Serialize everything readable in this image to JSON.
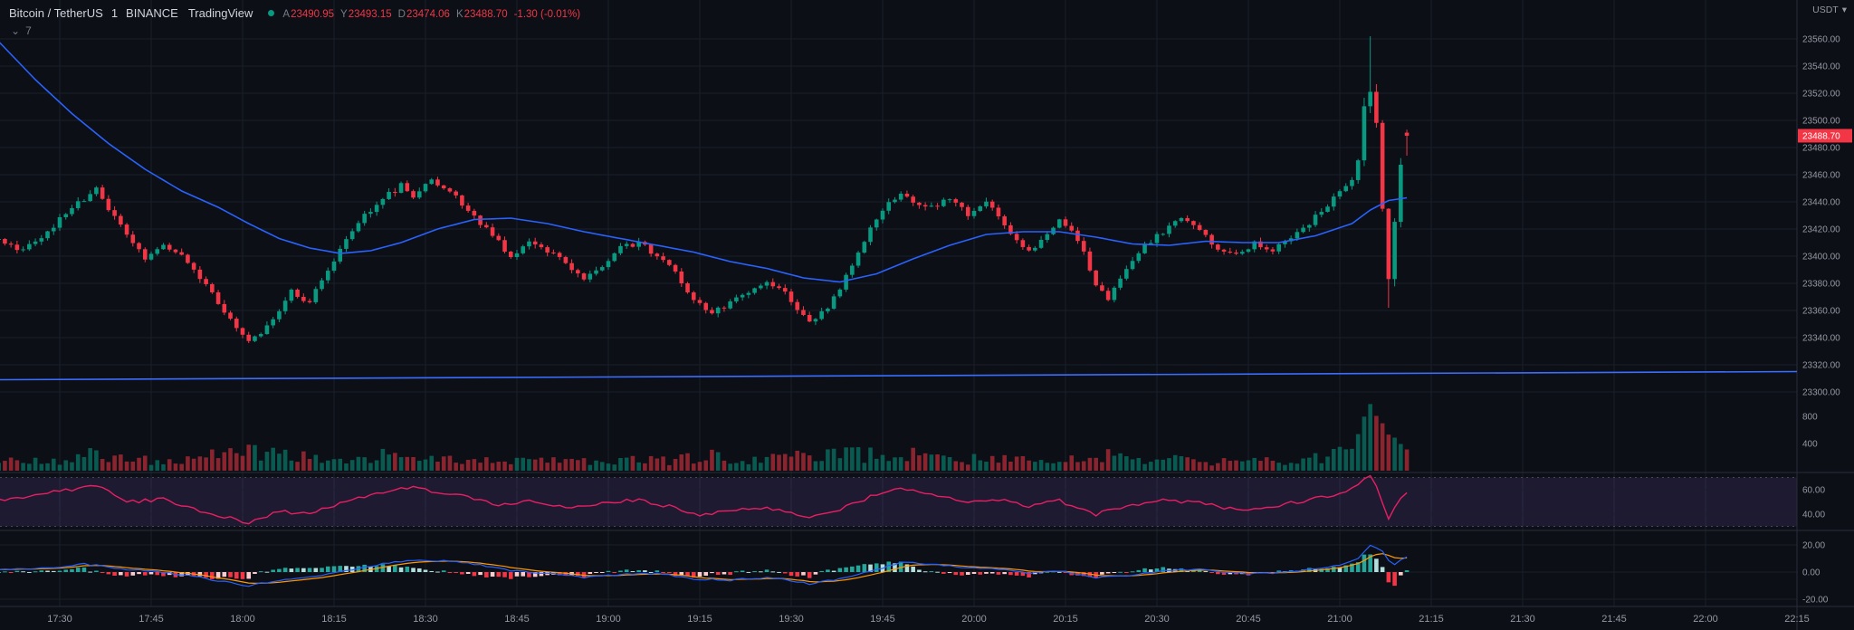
{
  "header": {
    "symbol": "Bitcoin / TetherUS",
    "interval": "1",
    "exchange": "BINANCE",
    "attribution": "TradingView",
    "ohlc": {
      "open_label": "A",
      "open_value": "23490.95",
      "high_label": "Y",
      "high_value": "23493.15",
      "low_label": "D",
      "low_value": "23474.06",
      "close_label": "K",
      "close_value": "23488.70",
      "change": "-1.30 (-0.01%)"
    },
    "indicators_toggle": {
      "count": "7"
    }
  },
  "icons": {
    "chevron_down": "⌄",
    "caret_down": "▾"
  },
  "price_axis": {
    "currency": "USDT",
    "last_price_tag": {
      "label": "23488.70",
      "price": 23488.7
    },
    "ticks": [
      {
        "label": "23560.00",
        "value": 23560
      },
      {
        "label": "23540.00",
        "value": 23540
      },
      {
        "label": "23520.00",
        "value": 23520
      },
      {
        "label": "23500.00",
        "value": 23500
      },
      {
        "label": "23480.00",
        "value": 23480
      },
      {
        "label": "23460.00",
        "value": 23460
      },
      {
        "label": "23440.00",
        "value": 23440
      },
      {
        "label": "23420.00",
        "value": 23420
      },
      {
        "label": "23400.00",
        "value": 23400
      },
      {
        "label": "23380.00",
        "value": 23380
      },
      {
        "label": "23360.00",
        "value": 23360
      },
      {
        "label": "23340.00",
        "value": 23340
      },
      {
        "label": "23320.00",
        "value": 23320
      },
      {
        "label": "23300.00",
        "value": 23300
      }
    ]
  },
  "volume_axis": {
    "ticks": [
      {
        "label": "800",
        "value": 800
      },
      {
        "label": "400",
        "value": 400
      }
    ]
  },
  "rsi_axis": {
    "ticks": [
      {
        "label": "60.00",
        "value": 60
      },
      {
        "label": "40.00",
        "value": 40
      }
    ]
  },
  "macd_axis": {
    "ticks": [
      {
        "label": "20.00",
        "value": 20
      },
      {
        "label": "0.00",
        "value": 0
      },
      {
        "label": "-20.00",
        "value": -20
      }
    ]
  },
  "time_axis": {
    "ticks": [
      "17:30",
      "17:45",
      "18:00",
      "18:15",
      "18:30",
      "18:45",
      "19:00",
      "19:15",
      "19:30",
      "19:45",
      "20:00",
      "20:15",
      "20:30",
      "20:45",
      "21:00",
      "21:15",
      "21:30",
      "21:45",
      "22:00",
      "22:15"
    ]
  },
  "colors": {
    "background": "#0c0f16",
    "grid": "#1a1f2b",
    "pane_separator": "#2a2e39",
    "axis_text": "#9598a1",
    "text_primary": "#d1d4dc",
    "text_muted": "#787b86",
    "up": "#089981",
    "down": "#f23645",
    "volume_up": "rgba(8,153,129,0.55)",
    "volume_down": "rgba(242,54,69,0.55)",
    "ma_line": "#2962ff",
    "trend_line": "#3b6dff",
    "rsi_line": "#e91e63",
    "rsi_band": "rgba(126,87,194,0.16)",
    "rsi_level": "#787b86",
    "macd_line": "#2962ff",
    "signal_line": "#ff9800",
    "hist_up": "#26a69a",
    "hist_up_weak": "#b2dfdb",
    "hist_down": "#f23645",
    "hist_down_weak": "#fccbcd",
    "price_tag_bg": "#f23645",
    "price_tag_text": "#ffffff"
  },
  "chart_data": {
    "type": "candlestick",
    "title": "Bitcoin / TetherUS, 1 minute, BINANCE",
    "interval_minutes": 1,
    "candle_count": 232,
    "first_candle_time": "17:20",
    "last_candle_time": "21:11",
    "price_range": [
      23300,
      23560
    ],
    "panes": [
      "price+volume",
      "rsi",
      "macd"
    ],
    "grid": true,
    "last_candle": {
      "open": 23490.95,
      "high": 23493.15,
      "low": 23474.06,
      "close": 23488.7
    },
    "spike_candle": {
      "index": 225,
      "high": 23562
    },
    "deep_wick_candle": {
      "index": 228,
      "low": 23362
    },
    "trendline": {
      "start_price": 23309,
      "end_price": 23315
    },
    "rsi_band": [
      30,
      70
    ],
    "series": {
      "close_anchors": [
        [
          0,
          23412
        ],
        [
          4,
          23404
        ],
        [
          8,
          23418
        ],
        [
          11,
          23432
        ],
        [
          14,
          23442
        ],
        [
          16,
          23450
        ],
        [
          18,
          23436
        ],
        [
          21,
          23415
        ],
        [
          24,
          23398
        ],
        [
          27,
          23408
        ],
        [
          30,
          23400
        ],
        [
          33,
          23385
        ],
        [
          36,
          23365
        ],
        [
          39,
          23348
        ],
        [
          41,
          23336
        ],
        [
          43,
          23344
        ],
        [
          46,
          23360
        ],
        [
          48,
          23374
        ],
        [
          51,
          23366
        ],
        [
          54,
          23390
        ],
        [
          57,
          23412
        ],
        [
          60,
          23430
        ],
        [
          63,
          23442
        ],
        [
          66,
          23452
        ],
        [
          68,
          23444
        ],
        [
          71,
          23455
        ],
        [
          74,
          23448
        ],
        [
          76,
          23438
        ],
        [
          79,
          23424
        ],
        [
          82,
          23410
        ],
        [
          84,
          23400
        ],
        [
          87,
          23412
        ],
        [
          90,
          23404
        ],
        [
          93,
          23394
        ],
        [
          96,
          23384
        ],
        [
          99,
          23394
        ],
        [
          102,
          23406
        ],
        [
          105,
          23410
        ],
        [
          108,
          23400
        ],
        [
          111,
          23388
        ],
        [
          114,
          23368
        ],
        [
          117,
          23358
        ],
        [
          120,
          23366
        ],
        [
          123,
          23375
        ],
        [
          126,
          23382
        ],
        [
          129,
          23372
        ],
        [
          131,
          23360
        ],
        [
          133,
          23350
        ],
        [
          136,
          23362
        ],
        [
          139,
          23385
        ],
        [
          142,
          23412
        ],
        [
          145,
          23435
        ],
        [
          148,
          23446
        ],
        [
          150,
          23440
        ],
        [
          153,
          23436
        ],
        [
          156,
          23443
        ],
        [
          159,
          23430
        ],
        [
          162,
          23440
        ],
        [
          164,
          23428
        ],
        [
          167,
          23412
        ],
        [
          169,
          23404
        ],
        [
          172,
          23416
        ],
        [
          174,
          23428
        ],
        [
          177,
          23412
        ],
        [
          180,
          23380
        ],
        [
          182,
          23368
        ],
        [
          185,
          23390
        ],
        [
          188,
          23408
        ],
        [
          191,
          23418
        ],
        [
          194,
          23428
        ],
        [
          197,
          23420
        ],
        [
          200,
          23405
        ],
        [
          203,
          23400
        ],
        [
          206,
          23410
        ],
        [
          209,
          23404
        ],
        [
          212,
          23415
        ],
        [
          215,
          23425
        ],
        [
          218,
          23438
        ],
        [
          220,
          23446
        ],
        [
          222,
          23455
        ],
        [
          223,
          23470
        ],
        [
          224,
          23510
        ],
        [
          225,
          23522
        ],
        [
          226,
          23498
        ],
        [
          227,
          23435
        ],
        [
          228,
          23382
        ],
        [
          229,
          23425
        ],
        [
          230,
          23468
        ],
        [
          231,
          23488.7
        ]
      ],
      "volume_anchors": [
        [
          0,
          140
        ],
        [
          10,
          120
        ],
        [
          16,
          260
        ],
        [
          24,
          150
        ],
        [
          33,
          180
        ],
        [
          41,
          300
        ],
        [
          48,
          200
        ],
        [
          57,
          170
        ],
        [
          63,
          240
        ],
        [
          70,
          190
        ],
        [
          80,
          150
        ],
        [
          90,
          130
        ],
        [
          100,
          150
        ],
        [
          110,
          160
        ],
        [
          117,
          220
        ],
        [
          126,
          150
        ],
        [
          133,
          260
        ],
        [
          142,
          230
        ],
        [
          148,
          260
        ],
        [
          156,
          170
        ],
        [
          164,
          160
        ],
        [
          172,
          140
        ],
        [
          180,
          230
        ],
        [
          188,
          170
        ],
        [
          196,
          150
        ],
        [
          204,
          140
        ],
        [
          212,
          150
        ],
        [
          218,
          190
        ],
        [
          222,
          320
        ],
        [
          224,
          780
        ],
        [
          225,
          1050
        ],
        [
          226,
          820
        ],
        [
          227,
          680
        ],
        [
          228,
          560
        ],
        [
          229,
          460
        ],
        [
          230,
          380
        ],
        [
          231,
          310
        ]
      ],
      "ma_anchors": [
        [
          0,
          23558
        ],
        [
          6,
          23530
        ],
        [
          12,
          23505
        ],
        [
          18,
          23483
        ],
        [
          24,
          23464
        ],
        [
          30,
          23448
        ],
        [
          36,
          23436
        ],
        [
          41,
          23424
        ],
        [
          46,
          23413
        ],
        [
          51,
          23406
        ],
        [
          56,
          23402
        ],
        [
          61,
          23404
        ],
        [
          66,
          23410
        ],
        [
          72,
          23420
        ],
        [
          78,
          23427
        ],
        [
          84,
          23428
        ],
        [
          90,
          23424
        ],
        [
          96,
          23418
        ],
        [
          102,
          23413
        ],
        [
          108,
          23408
        ],
        [
          114,
          23403
        ],
        [
          120,
          23396
        ],
        [
          126,
          23391
        ],
        [
          132,
          23384
        ],
        [
          138,
          23381
        ],
        [
          144,
          23387
        ],
        [
          150,
          23398
        ],
        [
          156,
          23408
        ],
        [
          162,
          23416
        ],
        [
          168,
          23418
        ],
        [
          174,
          23418
        ],
        [
          180,
          23414
        ],
        [
          186,
          23409
        ],
        [
          192,
          23408
        ],
        [
          198,
          23411
        ],
        [
          204,
          23410
        ],
        [
          210,
          23410
        ],
        [
          216,
          23415
        ],
        [
          222,
          23424
        ],
        [
          225,
          23434
        ],
        [
          228,
          23441
        ],
        [
          231,
          23443
        ]
      ],
      "rsi_anchors": [
        [
          0,
          52
        ],
        [
          8,
          57
        ],
        [
          14,
          62
        ],
        [
          16,
          64
        ],
        [
          21,
          50
        ],
        [
          27,
          52
        ],
        [
          33,
          43
        ],
        [
          38,
          37
        ],
        [
          41,
          33
        ],
        [
          46,
          42
        ],
        [
          51,
          40
        ],
        [
          57,
          50
        ],
        [
          63,
          58
        ],
        [
          67,
          62
        ],
        [
          72,
          58
        ],
        [
          76,
          55
        ],
        [
          82,
          48
        ],
        [
          87,
          51
        ],
        [
          93,
          45
        ],
        [
          99,
          49
        ],
        [
          105,
          52
        ],
        [
          111,
          45
        ],
        [
          115,
          39
        ],
        [
          120,
          43
        ],
        [
          126,
          46
        ],
        [
          131,
          39
        ],
        [
          133,
          36
        ],
        [
          139,
          46
        ],
        [
          145,
          58
        ],
        [
          148,
          62
        ],
        [
          153,
          55
        ],
        [
          159,
          50
        ],
        [
          164,
          52
        ],
        [
          169,
          46
        ],
        [
          174,
          51
        ],
        [
          180,
          40
        ],
        [
          185,
          46
        ],
        [
          191,
          51
        ],
        [
          197,
          49
        ],
        [
          203,
          44
        ],
        [
          209,
          46
        ],
        [
          215,
          52
        ],
        [
          220,
          57
        ],
        [
          223,
          64
        ],
        [
          225,
          72
        ],
        [
          226,
          62
        ],
        [
          227,
          48
        ],
        [
          228,
          37
        ],
        [
          229,
          45
        ],
        [
          230,
          54
        ],
        [
          231,
          57
        ]
      ],
      "macd_anchors": [
        [
          0,
          2
        ],
        [
          8,
          3
        ],
        [
          14,
          6
        ],
        [
          21,
          2
        ],
        [
          27,
          0
        ],
        [
          33,
          -4
        ],
        [
          38,
          -8
        ],
        [
          41,
          -10
        ],
        [
          46,
          -6
        ],
        [
          51,
          -4
        ],
        [
          57,
          1
        ],
        [
          63,
          6
        ],
        [
          68,
          9
        ],
        [
          74,
          8
        ],
        [
          79,
          5
        ],
        [
          84,
          1
        ],
        [
          90,
          -1
        ],
        [
          96,
          -4
        ],
        [
          102,
          -2
        ],
        [
          108,
          -1
        ],
        [
          114,
          -5
        ],
        [
          120,
          -6
        ],
        [
          126,
          -4
        ],
        [
          131,
          -7
        ],
        [
          133,
          -9
        ],
        [
          139,
          -4
        ],
        [
          145,
          3
        ],
        [
          148,
          7
        ],
        [
          153,
          6
        ],
        [
          159,
          3
        ],
        [
          164,
          2
        ],
        [
          169,
          -1
        ],
        [
          174,
          1
        ],
        [
          180,
          -4
        ],
        [
          185,
          -3
        ],
        [
          191,
          1
        ],
        [
          197,
          2
        ],
        [
          203,
          -1
        ],
        [
          209,
          -1
        ],
        [
          215,
          2
        ],
        [
          220,
          5
        ],
        [
          223,
          10
        ],
        [
          225,
          20
        ],
        [
          227,
          16
        ],
        [
          228,
          8
        ],
        [
          229,
          6
        ],
        [
          230,
          9
        ],
        [
          231,
          11
        ]
      ]
    }
  }
}
